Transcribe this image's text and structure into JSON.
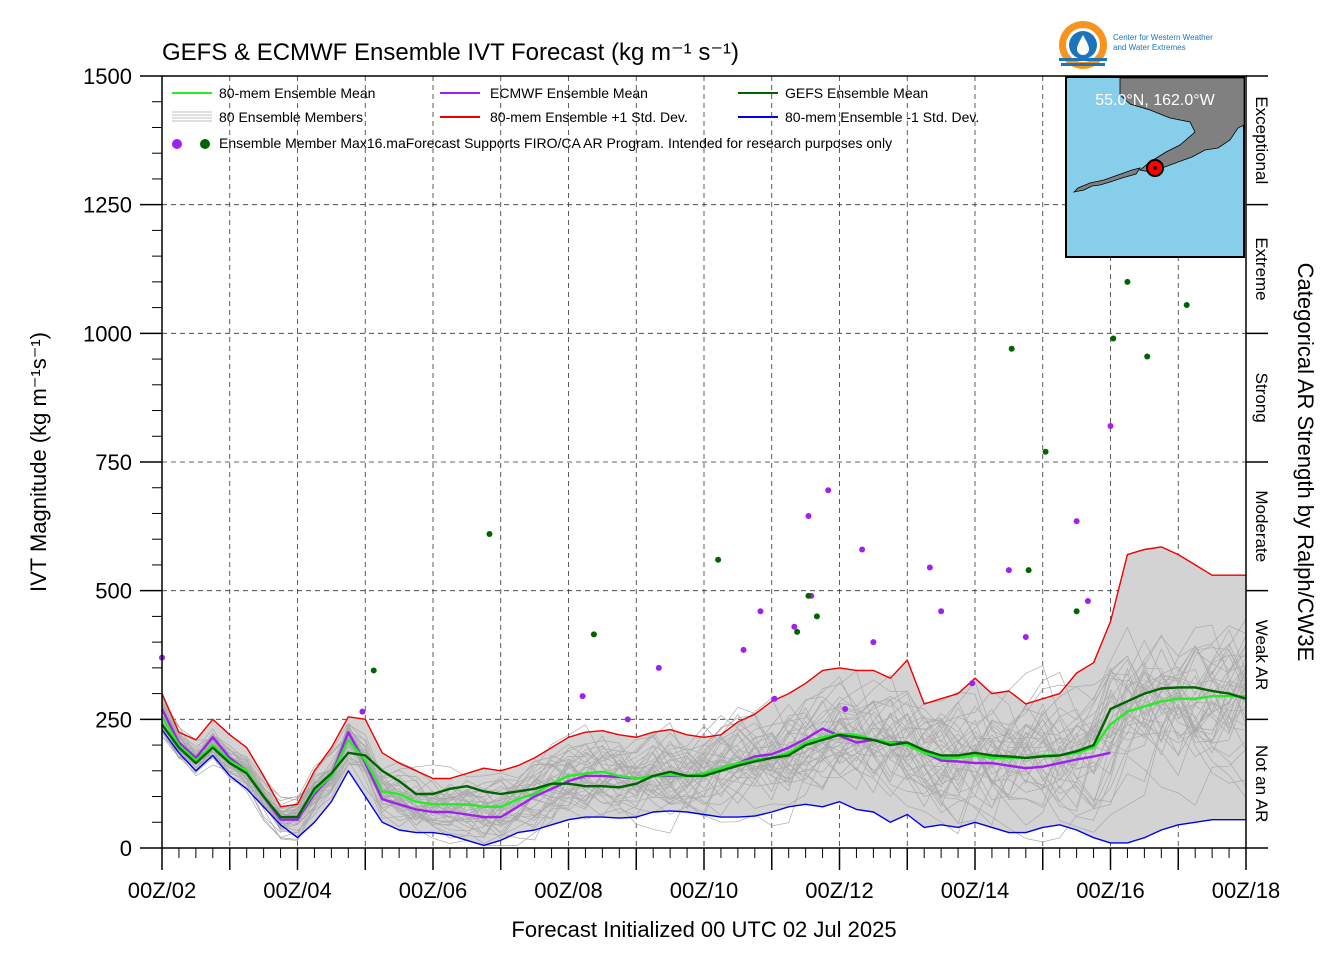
{
  "chart_data": {
    "type": "line",
    "title": "GEFS & ECMWF Ensemble IVT Forecast (kg m⁻¹ s⁻¹)",
    "xlabel": "Forecast Initialized 00 UTC 02 Jul 2025",
    "ylabel": "IVT Magnitude (kg m⁻¹s⁻¹)",
    "right_label": "Categorical AR Strength by Ralph/CW3E",
    "ylim": [
      0,
      1500
    ],
    "xlim_hours": [
      0,
      384
    ],
    "grid": true,
    "yticks": [
      "0",
      "250",
      "500",
      "750",
      "1000",
      "1250",
      "1500"
    ],
    "xticks": [
      "00Z/02",
      "00Z/04",
      "00Z/06",
      "00Z/08",
      "00Z/10",
      "00Z/12",
      "00Z/14",
      "00Z/16",
      "00Z/18"
    ],
    "categories": [
      "Not an AR",
      "Weak AR",
      "Moderate",
      "Strong",
      "Extreme",
      "Exceptional"
    ],
    "legend": {
      "placement": "top-left",
      "items": [
        {
          "label": "80-mem Ensemble Mean",
          "color": "#22ee22"
        },
        {
          "label": "ECMWF Ensemble Mean",
          "color": "#a020f0"
        },
        {
          "label": "GEFS Ensemble Mean",
          "color": "#006400"
        },
        {
          "label": "80 Ensemble Members",
          "color": "#aaaaaa"
        },
        {
          "label": "80-mem Ensemble +1 Std. Dev.",
          "color": "#ee0000"
        },
        {
          "label": "80-mem Ensemble -1 Std. Dev.",
          "color": "#0000ee"
        }
      ],
      "max_label": "Ensemble Member Max",
      "note": "16.maForecast Supports FIRO/CA AR Program. Intended for research purposes only"
    },
    "inset": {
      "location_label": "55.0°N, 162.0°W"
    },
    "logo": {
      "name": "Center for Western Weather and Water Extremes"
    },
    "series": [
      {
        "name": "80-mem Ensemble Mean",
        "color": "#22ee22",
        "x": [
          0,
          6,
          12,
          18,
          24,
          30,
          36,
          42,
          48,
          54,
          60,
          66,
          72,
          78,
          84,
          90,
          96,
          102,
          108,
          114,
          120,
          126,
          132,
          138,
          144,
          150,
          156,
          162,
          168,
          174,
          180,
          186,
          192,
          198,
          204,
          210,
          216,
          222,
          228,
          234,
          240,
          246,
          252,
          258,
          264,
          270,
          276,
          282,
          288,
          294,
          300,
          306,
          312,
          318,
          324,
          330,
          336,
          342,
          348,
          354,
          360,
          366,
          372,
          378,
          384
        ],
        "y": [
          255,
          200,
          170,
          200,
          170,
          150,
          100,
          60,
          60,
          110,
          140,
          210,
          170,
          110,
          105,
          90,
          85,
          85,
          85,
          80,
          80,
          95,
          105,
          125,
          140,
          145,
          148,
          140,
          135,
          140,
          142,
          140,
          145,
          155,
          165,
          172,
          175,
          185,
          205,
          215,
          222,
          220,
          210,
          205,
          200,
          185,
          175,
          175,
          180,
          175,
          175,
          175,
          180,
          180,
          185,
          195,
          240,
          265,
          275,
          285,
          290,
          290,
          295,
          295,
          295
        ]
      },
      {
        "name": "ECMWF Ensemble Mean",
        "color": "#a020f0",
        "x": [
          0,
          6,
          12,
          18,
          24,
          30,
          36,
          42,
          48,
          54,
          60,
          66,
          72,
          78,
          84,
          90,
          96,
          102,
          108,
          114,
          120,
          126,
          132,
          138,
          144,
          150,
          156,
          162,
          168,
          174,
          180,
          186,
          192,
          198,
          204,
          210,
          216,
          222,
          228,
          234,
          240,
          246,
          252,
          258,
          264,
          270,
          276,
          282,
          288,
          294,
          300,
          306,
          312,
          318,
          324,
          330,
          336
        ],
        "y": [
          270,
          205,
          175,
          215,
          175,
          150,
          100,
          55,
          55,
          105,
          140,
          225,
          165,
          95,
          85,
          75,
          70,
          70,
          65,
          60,
          60,
          80,
          100,
          115,
          130,
          140,
          140,
          138,
          135,
          140,
          140,
          140,
          145,
          155,
          165,
          178,
          182,
          195,
          212,
          232,
          218,
          205,
          210,
          205,
          205,
          185,
          170,
          168,
          165,
          165,
          160,
          155,
          158,
          165,
          172,
          178,
          185
        ]
      },
      {
        "name": "GEFS Ensemble Mean",
        "color": "#006400",
        "x": [
          0,
          6,
          12,
          18,
          24,
          30,
          36,
          42,
          48,
          54,
          60,
          66,
          72,
          78,
          84,
          90,
          96,
          102,
          108,
          114,
          120,
          126,
          132,
          138,
          144,
          150,
          156,
          162,
          168,
          174,
          180,
          186,
          192,
          198,
          204,
          210,
          216,
          222,
          228,
          234,
          240,
          246,
          252,
          258,
          264,
          270,
          276,
          282,
          288,
          294,
          300,
          306,
          312,
          318,
          324,
          330,
          336,
          342,
          348,
          354,
          360,
          366,
          372,
          378,
          384
        ],
        "y": [
          240,
          195,
          165,
          195,
          165,
          145,
          100,
          60,
          60,
          115,
          145,
          185,
          180,
          150,
          130,
          105,
          105,
          115,
          120,
          110,
          105,
          110,
          115,
          125,
          125,
          120,
          120,
          118,
          125,
          140,
          148,
          140,
          140,
          150,
          160,
          168,
          175,
          180,
          200,
          210,
          220,
          215,
          210,
          200,
          205,
          190,
          180,
          180,
          185,
          180,
          178,
          175,
          178,
          180,
          188,
          200,
          270,
          285,
          300,
          310,
          312,
          312,
          305,
          300,
          290
        ]
      },
      {
        "name": "80-mem Ensemble +1 Std. Dev.",
        "color": "#ee0000",
        "x": [
          0,
          6,
          12,
          18,
          24,
          30,
          36,
          42,
          48,
          54,
          60,
          66,
          72,
          78,
          84,
          90,
          96,
          102,
          108,
          114,
          120,
          126,
          132,
          138,
          144,
          150,
          156,
          162,
          168,
          174,
          180,
          186,
          192,
          198,
          204,
          210,
          216,
          222,
          228,
          234,
          240,
          246,
          252,
          258,
          264,
          270,
          276,
          282,
          288,
          294,
          300,
          306,
          312,
          318,
          324,
          330,
          336,
          342,
          348,
          354,
          360,
          366,
          372,
          378,
          384
        ],
        "y": [
          300,
          225,
          210,
          250,
          220,
          195,
          140,
          80,
          85,
          150,
          195,
          255,
          250,
          185,
          165,
          150,
          135,
          135,
          145,
          155,
          150,
          160,
          175,
          195,
          215,
          225,
          228,
          220,
          215,
          225,
          230,
          220,
          215,
          220,
          245,
          260,
          285,
          300,
          320,
          345,
          350,
          345,
          345,
          330,
          365,
          280,
          290,
          300,
          330,
          300,
          305,
          280,
          290,
          300,
          340,
          360,
          440,
          570,
          580,
          585,
          570,
          550,
          530,
          530,
          530
        ]
      },
      {
        "name": "80-mem Ensemble -1 Std. Dev.",
        "color": "#0000ee",
        "x": [
          0,
          6,
          12,
          18,
          24,
          30,
          36,
          42,
          48,
          54,
          60,
          66,
          72,
          78,
          84,
          90,
          96,
          102,
          108,
          114,
          120,
          126,
          132,
          138,
          144,
          150,
          156,
          162,
          168,
          174,
          180,
          186,
          192,
          198,
          204,
          210,
          216,
          222,
          228,
          234,
          240,
          246,
          252,
          258,
          264,
          270,
          276,
          282,
          288,
          294,
          300,
          306,
          312,
          318,
          324,
          330,
          336,
          342,
          348,
          354,
          360,
          366,
          372,
          378,
          384
        ],
        "y": [
          230,
          185,
          150,
          180,
          140,
          115,
          80,
          45,
          20,
          50,
          90,
          150,
          100,
          50,
          35,
          30,
          30,
          25,
          15,
          5,
          15,
          30,
          35,
          45,
          55,
          60,
          60,
          58,
          60,
          70,
          72,
          70,
          65,
          60,
          60,
          62,
          70,
          80,
          85,
          80,
          90,
          75,
          70,
          50,
          65,
          40,
          45,
          40,
          50,
          40,
          30,
          30,
          40,
          45,
          35,
          20,
          10,
          10,
          20,
          35,
          45,
          50,
          55,
          55,
          55
        ]
      }
    ],
    "member_max": [
      {
        "color": "#a020f0",
        "x": [
          0,
          71,
          149,
          165,
          176,
          206,
          212,
          217,
          224,
          229,
          230,
          236,
          242,
          248,
          252,
          272,
          276,
          287,
          300,
          306,
          324,
          328,
          336
        ],
        "y": [
          370,
          265,
          295,
          250,
          350,
          385,
          460,
          290,
          430,
          645,
          490,
          695,
          270,
          580,
          400,
          545,
          460,
          320,
          540,
          410,
          635,
          480,
          820
        ]
      },
      {
        "color": "#006400",
        "x": [
          75,
          116,
          153,
          197,
          225,
          229,
          232,
          301,
          307,
          313,
          324,
          337,
          342,
          349,
          363
        ],
        "y": [
          345,
          610,
          415,
          560,
          420,
          490,
          450,
          970,
          540,
          770,
          460,
          990,
          1100,
          955,
          1055
        ]
      }
    ]
  }
}
